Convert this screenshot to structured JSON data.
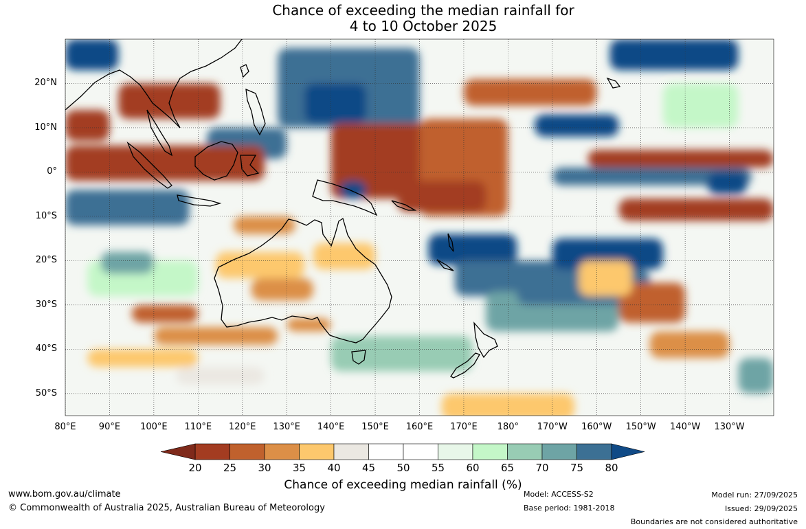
{
  "title": {
    "line1": "Chance of exceeding the median rainfall for",
    "line2": "4 to 10 October 2025"
  },
  "map": {
    "lat_labels": [
      "20°N",
      "10°N",
      "0°",
      "10°S",
      "20°S",
      "30°S",
      "40°S",
      "50°S"
    ],
    "lon_labels": [
      "80°E",
      "90°E",
      "100°E",
      "110°E",
      "120°E",
      "130°E",
      "140°E",
      "150°E",
      "160°E",
      "170°E",
      "180°",
      "170°W",
      "160°W",
      "150°W",
      "140°W",
      "130°W"
    ],
    "grid_lats": [
      20,
      10,
      0,
      -10,
      -20,
      -30,
      -40,
      -50
    ],
    "grid_lons": [
      80,
      90,
      100,
      110,
      120,
      130,
      140,
      150,
      160,
      170,
      180,
      190,
      200,
      210,
      220,
      230
    ],
    "extent": {
      "lon_min": 80,
      "lon_max": 240,
      "lat_min": -55,
      "lat_max": 30
    },
    "regions": [
      {
        "bin": "80+",
        "lon": [
          80,
          92
        ],
        "lat": [
          23,
          30
        ]
      },
      {
        "bin": "75-80",
        "lon": [
          128,
          160
        ],
        "lat": [
          10,
          28
        ]
      },
      {
        "bin": "80+",
        "lon": [
          134,
          148
        ],
        "lat": [
          11,
          20
        ]
      },
      {
        "bin": "75-80",
        "lon": [
          112,
          130
        ],
        "lat": [
          3,
          10
        ]
      },
      {
        "bin": "80+",
        "lon": [
          203,
          232
        ],
        "lat": [
          23,
          30
        ]
      },
      {
        "bin": "80+",
        "lon": [
          186,
          205
        ],
        "lat": [
          8,
          13
        ]
      },
      {
        "bin": "75-80",
        "lon": [
          190,
          235
        ],
        "lat": [
          -3,
          1
        ]
      },
      {
        "bin": "80+",
        "lon": [
          225,
          234
        ],
        "lat": [
          -5,
          0
        ]
      },
      {
        "bin": "20-25",
        "lon": [
          80,
          90
        ],
        "lat": [
          7,
          14
        ]
      },
      {
        "bin": "20-25",
        "lon": [
          92,
          115
        ],
        "lat": [
          12,
          20
        ]
      },
      {
        "bin": "20-25",
        "lon": [
          80,
          125
        ],
        "lat": [
          -2,
          6
        ]
      },
      {
        "bin": "20-25",
        "lon": [
          140,
          170
        ],
        "lat": [
          -6,
          11
        ]
      },
      {
        "bin": "25-30",
        "lon": [
          160,
          180
        ],
        "lat": [
          -10,
          12
        ]
      },
      {
        "bin": "20-25",
        "lon": [
          155,
          175
        ],
        "lat": [
          -9,
          -2
        ]
      },
      {
        "bin": "20-25",
        "lon": [
          198,
          240
        ],
        "lat": [
          1,
          5
        ]
      },
      {
        "bin": "20-25",
        "lon": [
          205,
          240
        ],
        "lat": [
          -11,
          -6
        ]
      },
      {
        "bin": "25-30",
        "lon": [
          170,
          200
        ],
        "lat": [
          15,
          21
        ]
      },
      {
        "bin": "80+",
        "lon": [
          80,
          103
        ],
        "lat": [
          -9,
          -5
        ]
      },
      {
        "bin": "75-80",
        "lon": [
          80,
          108
        ],
        "lat": [
          -12,
          -4
        ]
      },
      {
        "bin": "80+",
        "lon": [
          142,
          148
        ],
        "lat": [
          -6,
          -2
        ]
      },
      {
        "bin": "80+",
        "lon": [
          162,
          182
        ],
        "lat": [
          -21,
          -14
        ]
      },
      {
        "bin": "75-80",
        "lon": [
          168,
          195
        ],
        "lat": [
          -28,
          -20
        ]
      },
      {
        "bin": "70-75",
        "lon": [
          175,
          205
        ],
        "lat": [
          -36,
          -27
        ]
      },
      {
        "bin": "80+",
        "lon": [
          190,
          215
        ],
        "lat": [
          -22,
          -15
        ]
      },
      {
        "bin": "75-80",
        "lon": [
          182,
          212
        ],
        "lat": [
          -30,
          -22
        ]
      },
      {
        "bin": "30-35",
        "lon": [
          118,
          132
        ],
        "lat": [
          -14,
          -10
        ]
      },
      {
        "bin": "35-40",
        "lon": [
          114,
          134
        ],
        "lat": [
          -24,
          -18
        ]
      },
      {
        "bin": "30-35",
        "lon": [
          122,
          136
        ],
        "lat": [
          -29,
          -24
        ]
      },
      {
        "bin": "35-40",
        "lon": [
          136,
          150
        ],
        "lat": [
          -22,
          -16
        ]
      },
      {
        "bin": "25-30",
        "lon": [
          95,
          110
        ],
        "lat": [
          -34,
          -30
        ]
      },
      {
        "bin": "30-35",
        "lon": [
          100,
          128
        ],
        "lat": [
          -39,
          -35
        ]
      },
      {
        "bin": "35-40",
        "lon": [
          85,
          110
        ],
        "lat": [
          -44,
          -40
        ]
      },
      {
        "bin": "30-35",
        "lon": [
          130,
          140
        ],
        "lat": [
          -36,
          -33
        ]
      },
      {
        "bin": "25-30",
        "lon": [
          205,
          220
        ],
        "lat": [
          -34,
          -25
        ]
      },
      {
        "bin": "35-40",
        "lon": [
          196,
          208
        ],
        "lat": [
          -28,
          -20
        ]
      },
      {
        "bin": "30-35",
        "lon": [
          212,
          230
        ],
        "lat": [
          -42,
          -36
        ]
      },
      {
        "bin": "35-40",
        "lon": [
          165,
          195
        ],
        "lat": [
          -56,
          -50
        ]
      },
      {
        "bin": "65-70",
        "lon": [
          140,
          172
        ],
        "lat": [
          -45,
          -37
        ]
      },
      {
        "bin": "60-65",
        "lon": [
          85,
          110
        ],
        "lat": [
          -28,
          -20
        ]
      },
      {
        "bin": "70-75",
        "lon": [
          88,
          100
        ],
        "lat": [
          -23,
          -18
        ]
      },
      {
        "bin": "70-75",
        "lon": [
          232,
          240
        ],
        "lat": [
          -50,
          -42
        ]
      },
      {
        "bin": "60-65",
        "lon": [
          215,
          232
        ],
        "lat": [
          10,
          20
        ]
      },
      {
        "bin": "40-45",
        "lon": [
          105,
          125
        ],
        "lat": [
          -48,
          -44
        ]
      }
    ]
  },
  "colorbar": {
    "bins": [
      {
        "range": "<20",
        "color": "#7f2a1b"
      },
      {
        "range": "20-25",
        "color": "#a33c21"
      },
      {
        "range": "25-30",
        "color": "#c0612d"
      },
      {
        "range": "30-35",
        "color": "#dc8f47"
      },
      {
        "range": "35-40",
        "color": "#fdc86d"
      },
      {
        "range": "40-45",
        "color": "#ebe8e2"
      },
      {
        "range": "45-50",
        "color": "#ffffff"
      },
      {
        "range": "50-55",
        "color": "#ffffff"
      },
      {
        "range": "55-60",
        "color": "#e8f7e9"
      },
      {
        "range": "60-65",
        "color": "#c4f7c8"
      },
      {
        "range": "65-70",
        "color": "#98ccb4"
      },
      {
        "range": "70-75",
        "color": "#6ea4a5"
      },
      {
        "range": "75-80",
        "color": "#3c7094"
      },
      {
        "range": "80+",
        "color": "#104a86"
      }
    ],
    "tick_labels": [
      "20",
      "25",
      "30",
      "35",
      "40",
      "45",
      "50",
      "55",
      "60",
      "65",
      "70",
      "75",
      "80"
    ],
    "title": "Chance of exceeding median rainfall (%)"
  },
  "footer": {
    "website": "www.bom.gov.au/climate",
    "copyright": "© Commonwealth of Australia 2025, Australian Bureau of Meteorology",
    "model": "Model: ACCESS-S2",
    "base_period": "Base period: 1981-2018",
    "model_run": "Model run: 27/09/2025",
    "issued": "Issued: 29/09/2025",
    "boundaries": "Boundaries are not considered authoritative"
  }
}
